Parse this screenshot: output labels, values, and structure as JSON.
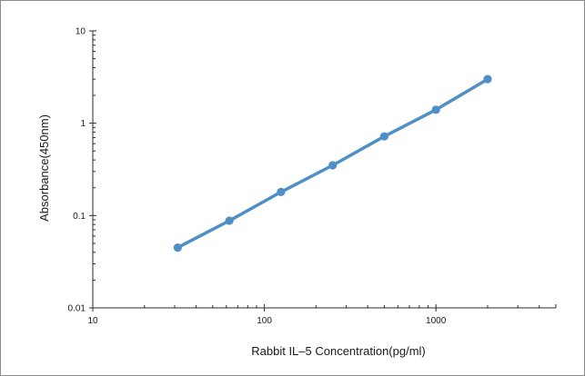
{
  "chart_data": {
    "type": "line",
    "title": "",
    "xlabel": "Rabbit IL–5 Concentration(pg/ml)",
    "ylabel": "Absorbance(450nm)",
    "xscale": "log",
    "yscale": "log",
    "xlim": [
      10,
      5000
    ],
    "ylim": [
      0.01,
      10
    ],
    "x_ticks": [
      "10",
      "100",
      "1000"
    ],
    "y_ticks": [
      "0.01",
      "0.1",
      "1",
      "10"
    ],
    "grid": false,
    "legend": "none",
    "series": [
      {
        "color": "#4f8fc6",
        "x": [
          31.25,
          62.5,
          125,
          250,
          500,
          1000,
          2000
        ],
        "y": [
          0.045,
          0.088,
          0.18,
          0.35,
          0.72,
          1.4,
          3.0
        ]
      }
    ]
  }
}
